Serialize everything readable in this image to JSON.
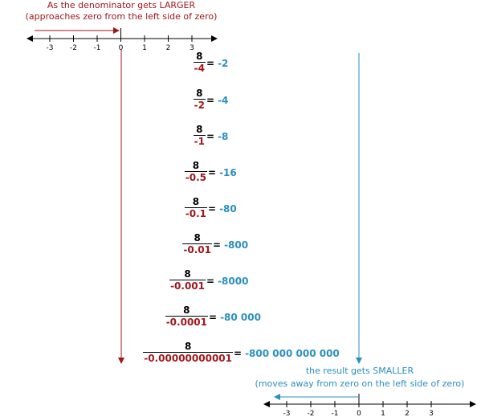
{
  "top_caption": {
    "line1": "As the denominator gets LARGER",
    "line2": "(approaches zero from the left side of zero)"
  },
  "bottom_caption": {
    "line1": "the result gets SMALLER",
    "line2": "(moves away from zero on the left side of zero)"
  },
  "top_number_line": {
    "ticks": [
      "-3",
      "-2",
      "-1",
      "0",
      "1",
      "2",
      "3"
    ]
  },
  "bottom_number_line": {
    "ticks": [
      "-3",
      "-2",
      "-1",
      "0",
      "1",
      "2",
      "3"
    ]
  },
  "equations": [
    {
      "numerator": "8",
      "denominator": "-4",
      "equals": "=",
      "result": "-2"
    },
    {
      "numerator": "8",
      "denominator": "-2",
      "equals": "=",
      "result": "-4"
    },
    {
      "numerator": "8",
      "denominator": "-1",
      "equals": "=",
      "result": "-8"
    },
    {
      "numerator": "8",
      "denominator": "-0.5",
      "equals": "=",
      "result": "-16"
    },
    {
      "numerator": "8",
      "denominator": "-0.1",
      "equals": "=",
      "result": "-80"
    },
    {
      "numerator": "8",
      "denominator": "-0.01",
      "equals": "=",
      "result": "-800"
    },
    {
      "numerator": "8",
      "denominator": "-0.001",
      "equals": "=",
      "result": "-8000"
    },
    {
      "numerator": "8",
      "denominator": "-0.0001",
      "equals": "=",
      "result": "-80 000"
    },
    {
      "numerator": "8",
      "denominator": "-0.00000000001",
      "equals": "=",
      "result": "-800 000 000 000"
    }
  ],
  "colors": {
    "red": "#a0171a",
    "blue": "#2a8fc0",
    "black": "#000000"
  }
}
